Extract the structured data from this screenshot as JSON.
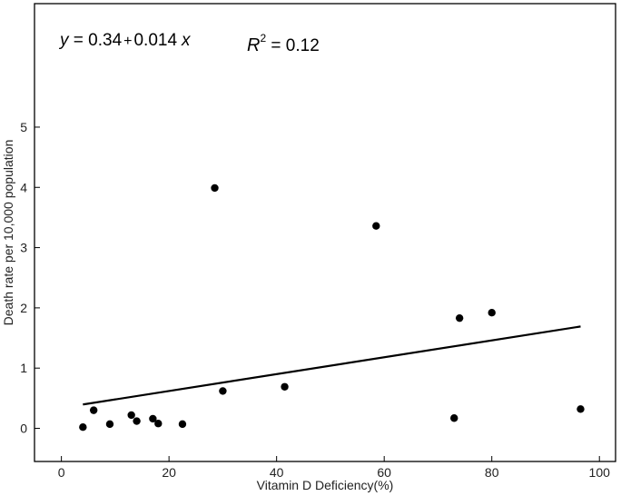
{
  "chart_data": {
    "type": "scatter",
    "xlabel": "Vitamin D Deficiency(%)",
    "ylabel": "Death rate per 10,000 population",
    "xlim": [
      -5,
      103
    ],
    "ylim": [
      -0.55,
      7.05
    ],
    "x_ticks": [
      0,
      20,
      40,
      60,
      80,
      100
    ],
    "y_ticks": [
      0,
      1,
      2,
      3,
      4,
      5
    ],
    "grid": false,
    "points": [
      {
        "x": 4,
        "y": 0.02
      },
      {
        "x": 6,
        "y": 0.3
      },
      {
        "x": 9,
        "y": 0.07
      },
      {
        "x": 13,
        "y": 0.22
      },
      {
        "x": 14,
        "y": 0.12
      },
      {
        "x": 17,
        "y": 0.16
      },
      {
        "x": 18,
        "y": 0.08
      },
      {
        "x": 22.5,
        "y": 0.07
      },
      {
        "x": 28.5,
        "y": 3.99
      },
      {
        "x": 30,
        "y": 0.62
      },
      {
        "x": 41.5,
        "y": 0.69
      },
      {
        "x": 58.5,
        "y": 3.36
      },
      {
        "x": 73,
        "y": 0.17
      },
      {
        "x": 74,
        "y": 1.83
      },
      {
        "x": 80,
        "y": 1.92
      },
      {
        "x": 96.5,
        "y": 0.32
      }
    ],
    "trend_line": {
      "intercept": 0.34,
      "slope": 0.014,
      "x_start": 4,
      "x_end": 96.5
    },
    "annotations": {
      "equation": {
        "y": "y",
        "equals_intercept": " = 0.34",
        "plus": "+",
        "slope_term": "0.014",
        "x": "x"
      },
      "r_squared": {
        "r": "R",
        "exponent": "2",
        "value_text": " = 0.12"
      }
    }
  }
}
